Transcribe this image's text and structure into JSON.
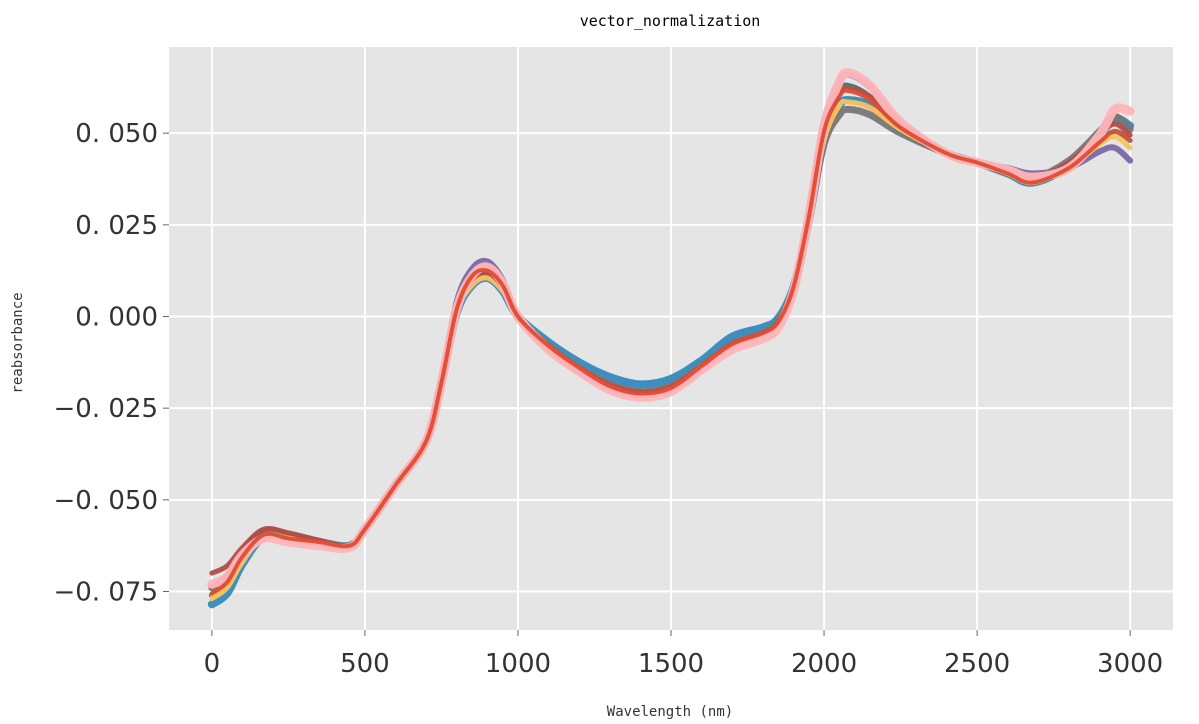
{
  "chart_data": {
    "type": "line",
    "title": "vector_normalization",
    "xlabel": "Wavelength (nm)",
    "ylabel": "reabsorbance",
    "xlim": [
      -140,
      3140
    ],
    "ylim": [
      -0.0855,
      0.0735
    ],
    "grid": true,
    "background": "#e5e5e5",
    "xticks": [
      0,
      500,
      1000,
      1500,
      2000,
      2500,
      3000
    ],
    "xtick_labels": [
      "0",
      "500",
      "1000",
      "1500",
      "2000",
      "2500",
      "3000"
    ],
    "yticks": [
      -0.075,
      -0.05,
      -0.025,
      0.0,
      0.025,
      0.05
    ],
    "ytick_labels": [
      "−0. 075",
      "−0. 050",
      "−0. 025",
      "0. 000",
      "0. 025",
      "0. 050"
    ],
    "x": [
      0,
      50,
      100,
      170,
      250,
      350,
      450,
      500,
      600,
      700,
      750,
      800,
      850,
      900,
      950,
      1000,
      1100,
      1200,
      1300,
      1400,
      1500,
      1600,
      1700,
      1800,
      1850,
      1900,
      1950,
      2000,
      2050,
      2080,
      2150,
      2250,
      2400,
      2500,
      2600,
      2680,
      2800,
      2900,
      2950,
      3000
    ],
    "base_curve": [
      -0.076,
      -0.073,
      -0.066,
      -0.0595,
      -0.06,
      -0.0615,
      -0.0625,
      -0.058,
      -0.046,
      -0.034,
      -0.018,
      0.002,
      0.01,
      0.012,
      0.008,
      0.0,
      -0.008,
      -0.014,
      -0.0185,
      -0.0205,
      -0.019,
      -0.0135,
      -0.0075,
      -0.0045,
      -0.0015,
      0.008,
      0.027,
      0.05,
      0.06,
      0.0615,
      0.059,
      0.0515,
      0.0445,
      0.042,
      0.039,
      0.0365,
      0.0405,
      0.0475,
      0.0505,
      0.048
    ],
    "series": [
      {
        "color": "#348abd",
        "offsets": [
          -0.0025,
          -0.0025,
          -0.0015,
          -0.0005,
          0.0,
          0.0,
          0.0,
          0.0,
          0.0,
          0.0,
          0.0,
          -0.001,
          -0.0015,
          -0.0015,
          -0.001,
          0.0,
          0.001,
          0.0015,
          0.002,
          0.002,
          0.002,
          0.0015,
          0.002,
          0.0015,
          0.001,
          0.0,
          -0.001,
          -0.0015,
          -0.0025,
          -0.0025,
          -0.0015,
          -0.0005,
          0.0,
          0.0,
          0.0,
          0.0,
          0.0005,
          0.002,
          0.0035,
          0.004
        ]
      },
      {
        "color": "#7a68a6",
        "offsets": [
          0.0,
          0.0,
          0.0,
          0.0,
          0.0,
          0.0,
          0.0,
          0.0,
          0.0,
          0.0,
          0.0,
          0.002,
          0.003,
          0.003,
          0.002,
          0.0,
          -0.0005,
          -0.001,
          -0.001,
          -0.001,
          -0.001,
          -0.0005,
          0.0,
          0.0,
          0.0,
          0.0,
          0.002,
          0.003,
          0.004,
          0.0045,
          0.0035,
          0.0015,
          0.0,
          0.0,
          0.0015,
          0.0025,
          0.0,
          -0.0025,
          -0.0045,
          -0.0055
        ]
      },
      {
        "color": "#777777",
        "offsets": [
          0.002,
          0.002,
          0.0015,
          0.001,
          0.0005,
          0.0,
          0.0,
          0.0,
          0.0,
          0.0,
          0.0,
          0.001,
          0.001,
          0.001,
          0.001,
          0.0,
          0.0,
          0.0,
          0.0,
          0.0,
          0.0,
          0.0,
          0.0,
          0.0,
          0.0,
          0.0,
          -0.001,
          -0.003,
          -0.005,
          -0.005,
          -0.004,
          -0.0015,
          0.0,
          0.0,
          0.0,
          0.001,
          0.002,
          0.003,
          0.004,
          0.003
        ]
      },
      {
        "color": "#188487",
        "offsets": [
          0.0,
          0.0,
          0.0,
          0.0,
          0.0,
          0.0,
          0.0,
          0.0,
          0.0,
          0.0,
          0.0,
          0.0,
          0.0,
          0.0,
          0.0,
          0.0,
          0.0,
          0.0,
          0.0,
          0.0,
          0.0,
          0.0,
          0.0,
          0.0,
          0.0,
          0.0,
          0.0,
          0.001,
          0.0015,
          0.0015,
          0.001,
          0.0005,
          0.0,
          0.0,
          0.0,
          0.0,
          0.0,
          0.0,
          0.0,
          0.0
        ]
      },
      {
        "color": "#8eba42",
        "offsets": [
          0.0,
          0.0,
          0.0,
          0.0,
          0.0,
          0.0,
          0.0,
          0.0,
          0.0,
          0.0,
          0.0,
          0.0,
          0.0005,
          0.0005,
          0.0005,
          0.0,
          0.0,
          0.0,
          0.0,
          0.0,
          0.0,
          0.0,
          0.0,
          0.0,
          0.0,
          0.0,
          0.0,
          0.0005,
          0.001,
          0.001,
          0.001,
          0.0005,
          0.0,
          0.0,
          0.0,
          0.0,
          0.0,
          0.0,
          0.0,
          0.0
        ]
      },
      {
        "color": "#fbc15e",
        "offsets": [
          -0.001,
          -0.001,
          -0.001,
          -0.0005,
          -0.0005,
          0.0,
          0.0,
          0.0,
          0.0,
          0.0,
          0.0,
          -0.001,
          -0.0015,
          -0.0015,
          -0.001,
          0.0,
          0.0,
          0.0,
          0.0,
          0.0,
          0.0,
          0.0,
          0.0,
          0.0,
          0.0,
          0.0,
          -0.001,
          -0.002,
          -0.0025,
          -0.003,
          -0.002,
          -0.0005,
          0.0,
          0.0,
          0.0,
          0.0,
          0.0,
          -0.0005,
          -0.0015,
          -0.002
        ]
      },
      {
        "color": "#b04d49",
        "offsets": [
          0.006,
          0.005,
          0.003,
          0.0015,
          0.001,
          0.0005,
          0.0,
          0.0,
          0.0,
          0.0,
          0.0,
          0.0,
          0.0,
          0.0,
          0.0,
          0.0,
          0.0,
          0.0,
          0.0,
          0.0,
          0.0,
          0.0,
          0.0,
          0.0,
          0.0,
          0.0,
          0.0,
          0.001,
          0.001,
          0.001,
          0.001,
          0.0005,
          0.0,
          0.0,
          0.0005,
          0.001,
          0.0015,
          0.002,
          0.002,
          0.0015
        ]
      },
      {
        "color": "#ffb5b8",
        "offsets": [
          0.003,
          0.002,
          0.001,
          -0.001,
          -0.0015,
          -0.001,
          -0.0005,
          0.0,
          0.0,
          0.0,
          0.0,
          0.0,
          0.001,
          0.0015,
          0.001,
          0.0,
          -0.001,
          -0.001,
          -0.0015,
          -0.0015,
          -0.0015,
          -0.001,
          -0.0015,
          -0.0015,
          -0.0015,
          -0.001,
          0.0,
          0.002,
          0.004,
          0.005,
          0.004,
          0.0015,
          0.0,
          0.0,
          0.001,
          0.0015,
          0.0,
          0.002,
          0.006,
          0.008
        ]
      },
      {
        "color": "#e24a33",
        "offsets": [
          0.0005,
          0.0005,
          0.0005,
          0.0,
          -0.0005,
          0.0,
          0.0,
          0.0,
          0.0,
          0.0,
          0.0,
          0.0,
          0.001,
          0.0005,
          0.0005,
          0.0,
          0.0,
          0.0,
          -0.0005,
          -0.0005,
          -0.0005,
          0.0,
          0.0,
          0.0,
          0.0,
          0.0,
          0.0,
          0.0005,
          0.0,
          0.0,
          0.0,
          0.0,
          0.0,
          0.0,
          0.0,
          0.0,
          0.0,
          0.0,
          0.0,
          0.0
        ]
      }
    ]
  }
}
